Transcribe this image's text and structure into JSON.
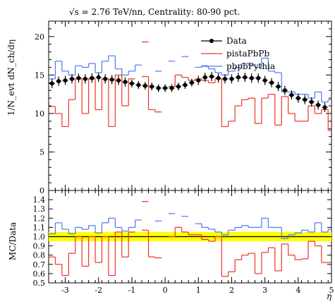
{
  "title": "√s = 2.76 TeV/nn, Centrality: 80-90 pct.",
  "colors": {
    "data": "#000000",
    "pista": "#ee3322",
    "pbpb": "#4d78ee",
    "band": "#ffff00"
  },
  "chart_data": [
    {
      "type": "line",
      "xlabel": "η",
      "ylabel": "1/N_evt dN_ch/dη",
      "xlim": [
        -3.5,
        5.0
      ],
      "ylim": [
        0,
        22
      ],
      "yticks": [
        "0",
        "5",
        "10",
        "15",
        "20"
      ],
      "xticks": [
        "-3",
        "-2",
        "-1",
        "0",
        "1",
        "2",
        "3",
        "4",
        "5"
      ],
      "legend": [
        "Data",
        "pistaPbPb",
        "pbpbPythia"
      ],
      "legend_position": "top-right",
      "series": [
        {
          "name": "Data",
          "x": [
            -3.4,
            -3.2,
            -3.0,
            -2.8,
            -2.6,
            -2.4,
            -2.2,
            -2.0,
            -1.8,
            -1.6,
            -1.4,
            -1.2,
            -1.0,
            -0.8,
            -0.6,
            -0.4,
            -0.2,
            0.0,
            0.2,
            0.4,
            0.6,
            0.8,
            1.0,
            1.2,
            1.4,
            1.6,
            1.8,
            2.0,
            2.2,
            2.4,
            2.6,
            2.8,
            3.0,
            3.2,
            3.4,
            3.6,
            3.8,
            4.0,
            4.2,
            4.4,
            4.6,
            4.8
          ],
          "y": [
            13.9,
            14.2,
            14.3,
            14.5,
            14.6,
            14.5,
            14.6,
            14.7,
            14.5,
            14.4,
            14.3,
            14.1,
            13.9,
            13.7,
            13.6,
            13.5,
            13.3,
            13.3,
            13.3,
            13.5,
            13.7,
            14.0,
            14.3,
            14.7,
            14.8,
            14.6,
            14.5,
            14.5,
            14.7,
            14.7,
            14.6,
            14.6,
            14.3,
            14.0,
            13.5,
            13.0,
            12.4,
            12.0,
            11.8,
            11.5,
            11.1,
            10.8
          ],
          "err": [
            0.6,
            0.6,
            0.6,
            0.6,
            0.6,
            0.6,
            0.6,
            0.6,
            0.6,
            0.6,
            0.6,
            0.6,
            0.5,
            0.5,
            0.5,
            0.5,
            0.5,
            0.5,
            0.5,
            0.5,
            0.5,
            0.5,
            0.6,
            0.6,
            0.6,
            0.6,
            0.6,
            0.6,
            0.6,
            0.6,
            0.6,
            0.6,
            0.6,
            0.6,
            0.6,
            0.6,
            0.6,
            0.6,
            0.6,
            0.6,
            0.6,
            0.6
          ]
        },
        {
          "name": "pistaPbPb",
          "x": [
            -3.5,
            -3.3,
            -3.1,
            -2.9,
            -2.7,
            -2.5,
            -2.3,
            -2.1,
            -1.9,
            -1.7,
            -1.5,
            -1.3,
            -1.1,
            -0.9,
            -0.7,
            -0.5,
            -0.3,
            -0.1,
            0.1,
            0.3,
            0.5,
            0.7,
            0.9,
            1.1,
            1.3,
            1.5,
            1.7,
            1.9,
            2.1,
            2.3,
            2.5,
            2.7,
            2.9,
            3.1,
            3.3,
            3.5,
            3.7,
            3.9,
            4.1,
            4.3,
            4.5,
            4.7,
            4.9,
            5.0
          ],
          "y": [
            null,
            10.9,
            10.0,
            8.3,
            11.8,
            14.5,
            10.0,
            14.5,
            10.5,
            14.5,
            8.3,
            15.0,
            11.0,
            14.5,
            null,
            null,
            10.5,
            10.2,
            null,
            null,
            null,
            null,
            14.5,
            14.5,
            14.5,
            14.0,
            8.3,
            9.0,
            11.0,
            11.8,
            12.0,
            8.7,
            12.0,
            12.5,
            8.5,
            12.2,
            10.0,
            9.0,
            9.0,
            11.0,
            10.0,
            7.8,
            null,
            null
          ],
          "segments": [
            [
              -3.5,
              10.9,
              -3.3
            ],
            [
              -3.3,
              10.0,
              -3.1
            ],
            [
              -3.1,
              8.3,
              -2.9
            ],
            [
              -2.9,
              11.8,
              -2.7
            ],
            [
              -2.7,
              14.5,
              -2.5
            ],
            [
              -2.5,
              10.0,
              -2.3
            ],
            [
              -2.3,
              14.5,
              -2.1
            ],
            [
              -2.1,
              10.5,
              -1.9
            ],
            [
              -1.9,
              14.5,
              -1.7
            ],
            [
              -1.7,
              8.3,
              -1.5
            ],
            [
              -1.5,
              15.0,
              -1.3
            ],
            [
              -1.3,
              11.0,
              -1.1
            ],
            [
              -1.1,
              14.5,
              -0.9
            ],
            [
              -0.7,
              19.3,
              -0.5
            ],
            [
              -0.7,
              14.8,
              -0.5
            ],
            [
              -0.5,
              10.5,
              -0.3
            ],
            [
              -0.3,
              10.2,
              -0.1
            ],
            [
              0.1,
              13.5,
              0.3
            ],
            [
              0.3,
              15.0,
              0.5
            ],
            [
              0.5,
              14.7,
              0.7
            ],
            [
              0.7,
              14.3,
              0.9
            ],
            [
              0.9,
              14.5,
              1.1
            ],
            [
              1.1,
              14.3,
              1.3
            ],
            [
              1.3,
              14.0,
              1.5
            ],
            [
              1.5,
              14.5,
              1.7
            ],
            [
              1.7,
              8.3,
              1.9
            ],
            [
              1.9,
              9.0,
              2.1
            ],
            [
              2.1,
              11.0,
              2.3
            ],
            [
              2.3,
              11.8,
              2.5
            ],
            [
              2.5,
              12.0,
              2.7
            ],
            [
              2.7,
              8.7,
              2.9
            ],
            [
              2.9,
              12.0,
              3.1
            ],
            [
              3.1,
              12.5,
              3.3
            ],
            [
              3.3,
              8.5,
              3.5
            ],
            [
              3.5,
              12.2,
              3.7
            ],
            [
              3.7,
              10.0,
              3.9
            ],
            [
              3.9,
              9.0,
              4.1
            ],
            [
              4.1,
              9.0,
              4.3
            ],
            [
              4.3,
              11.0,
              4.5
            ],
            [
              4.5,
              10.0,
              4.7
            ],
            [
              4.7,
              10.5,
              4.9
            ],
            [
              4.9,
              7.8,
              5.0
            ]
          ],
          "vertical_steps": true
        },
        {
          "name": "pbpbPythia",
          "segments": [
            [
              -3.5,
              14.5,
              -3.3
            ],
            [
              -3.3,
              16.8,
              -3.1
            ],
            [
              -3.1,
              15.5,
              -2.9
            ],
            [
              -2.9,
              15.0,
              -2.7
            ],
            [
              -2.7,
              16.2,
              -2.5
            ],
            [
              -2.5,
              16.0,
              -2.3
            ],
            [
              -2.3,
              16.5,
              -2.1
            ],
            [
              -2.1,
              15.3,
              -1.9
            ],
            [
              -1.9,
              16.8,
              -1.7
            ],
            [
              -1.7,
              17.5,
              -1.5
            ],
            [
              -1.5,
              15.8,
              -1.3
            ],
            [
              -1.3,
              15.0,
              -1.1
            ],
            [
              -1.1,
              15.5,
              -0.9
            ],
            [
              -0.9,
              16.3,
              -0.7
            ],
            [
              -0.3,
              15.5,
              -0.1
            ],
            [
              0.1,
              16.8,
              0.3
            ],
            [
              0.5,
              17.4,
              0.7
            ],
            [
              0.9,
              16.0,
              1.1
            ],
            [
              1.1,
              16.2,
              1.3
            ],
            [
              1.3,
              15.8,
              1.5
            ],
            [
              1.5,
              15.3,
              1.7
            ],
            [
              1.7,
              15.0,
              1.9
            ],
            [
              1.9,
              15.5,
              2.1
            ],
            [
              2.1,
              16.0,
              2.3
            ],
            [
              2.3,
              16.5,
              2.5
            ],
            [
              2.5,
              16.3,
              2.7
            ],
            [
              2.7,
              16.0,
              2.9
            ],
            [
              2.9,
              17.2,
              3.1
            ],
            [
              3.1,
              15.5,
              3.3
            ],
            [
              3.3,
              15.3,
              3.5
            ],
            [
              3.5,
              12.8,
              3.7
            ],
            [
              3.7,
              12.8,
              3.9
            ],
            [
              3.9,
              12.5,
              4.1
            ],
            [
              4.1,
              12.5,
              4.3
            ],
            [
              4.3,
              12.0,
              4.5
            ],
            [
              4.5,
              12.8,
              4.7
            ],
            [
              4.7,
              11.5,
              4.9
            ],
            [
              4.9,
              11.8,
              5.0
            ]
          ],
          "vertical_steps": true
        }
      ]
    },
    {
      "type": "line",
      "ylabel": "MC/Data",
      "xlabel": "η",
      "xlim": [
        -3.5,
        5.0
      ],
      "ylim": [
        0.5,
        1.5
      ],
      "yticks": [
        "0.5",
        "0.6",
        "0.7",
        "0.8",
        "0.9",
        "1.0",
        "1.1",
        "1.2",
        "1.3",
        "1.4"
      ],
      "xticks": [
        "-3",
        "-2",
        "-1",
        "0",
        "1",
        "2",
        "3",
        "4",
        "5"
      ],
      "band": {
        "center": 1.0,
        "halfwidth": 0.05
      },
      "series": [
        {
          "name": "pistaPbPb",
          "segments": [
            [
              -3.5,
              0.78,
              -3.3
            ],
            [
              -3.3,
              0.7,
              -3.1
            ],
            [
              -3.1,
              0.58,
              -2.9
            ],
            [
              -2.9,
              0.82,
              -2.7
            ],
            [
              -2.7,
              1.0,
              -2.5
            ],
            [
              -2.5,
              0.68,
              -2.3
            ],
            [
              -2.3,
              1.0,
              -2.1
            ],
            [
              -2.1,
              0.72,
              -1.9
            ],
            [
              -1.9,
              1.0,
              -1.7
            ],
            [
              -1.7,
              0.58,
              -1.5
            ],
            [
              -1.5,
              1.05,
              -1.3
            ],
            [
              -1.3,
              0.78,
              -1.1
            ],
            [
              -1.1,
              1.05,
              -0.9
            ],
            [
              -0.7,
              1.38,
              -0.5
            ],
            [
              -0.7,
              1.07,
              -0.5
            ],
            [
              -0.5,
              0.78,
              -0.3
            ],
            [
              -0.3,
              0.77,
              -0.1
            ],
            [
              0.1,
              1.0,
              0.3
            ],
            [
              0.3,
              1.1,
              0.5
            ],
            [
              0.5,
              1.05,
              0.7
            ],
            [
              0.7,
              1.02,
              0.9
            ],
            [
              0.9,
              1.02,
              1.1
            ],
            [
              1.1,
              0.97,
              1.3
            ],
            [
              1.3,
              0.95,
              1.5
            ],
            [
              1.5,
              1.0,
              1.7
            ],
            [
              1.7,
              0.57,
              1.9
            ],
            [
              1.9,
              0.62,
              2.1
            ],
            [
              2.1,
              0.75,
              2.3
            ],
            [
              2.3,
              0.8,
              2.5
            ],
            [
              2.5,
              0.82,
              2.7
            ],
            [
              2.7,
              0.6,
              2.9
            ],
            [
              2.9,
              0.83,
              3.1
            ],
            [
              3.1,
              0.88,
              3.3
            ],
            [
              3.3,
              0.63,
              3.5
            ],
            [
              3.5,
              0.92,
              3.7
            ],
            [
              3.7,
              0.8,
              3.9
            ],
            [
              3.9,
              0.75,
              4.1
            ],
            [
              4.1,
              0.76,
              4.3
            ],
            [
              4.3,
              0.95,
              4.5
            ],
            [
              4.5,
              0.9,
              4.7
            ],
            [
              4.7,
              0.72,
              4.9
            ],
            [
              4.9,
              0.72,
              5.0
            ]
          ],
          "vertical_steps": true
        },
        {
          "name": "pbpbPythia",
          "segments": [
            [
              -3.5,
              1.03,
              -3.3
            ],
            [
              -3.3,
              1.15,
              -3.1
            ],
            [
              -3.1,
              1.08,
              -2.9
            ],
            [
              -2.9,
              1.03,
              -2.7
            ],
            [
              -2.7,
              1.1,
              -2.5
            ],
            [
              -2.5,
              1.08,
              -2.3
            ],
            [
              -2.3,
              1.12,
              -2.1
            ],
            [
              -2.1,
              1.04,
              -1.9
            ],
            [
              -1.9,
              1.15,
              -1.7
            ],
            [
              -1.7,
              1.2,
              -1.5
            ],
            [
              -1.5,
              1.1,
              -1.3
            ],
            [
              -1.3,
              1.06,
              -1.1
            ],
            [
              -1.1,
              1.1,
              -0.9
            ],
            [
              -0.9,
              1.18,
              -0.7
            ],
            [
              -0.3,
              1.17,
              -0.1
            ],
            [
              0.1,
              1.25,
              0.3
            ],
            [
              0.5,
              1.22,
              0.7
            ],
            [
              0.9,
              1.14,
              1.1
            ],
            [
              1.1,
              1.1,
              1.3
            ],
            [
              1.3,
              1.08,
              1.5
            ],
            [
              1.5,
              1.05,
              1.7
            ],
            [
              1.7,
              1.02,
              1.9
            ],
            [
              1.9,
              1.07,
              2.1
            ],
            [
              2.1,
              1.1,
              2.3
            ],
            [
              2.3,
              1.12,
              2.5
            ],
            [
              2.5,
              1.1,
              2.7
            ],
            [
              2.7,
              1.1,
              2.9
            ],
            [
              2.9,
              1.2,
              3.1
            ],
            [
              3.1,
              1.1,
              3.3
            ],
            [
              3.3,
              1.1,
              3.5
            ],
            [
              3.5,
              0.98,
              3.7
            ],
            [
              3.7,
              1.02,
              3.9
            ],
            [
              3.9,
              1.04,
              4.1
            ],
            [
              4.1,
              1.07,
              4.3
            ],
            [
              4.3,
              1.05,
              4.5
            ],
            [
              4.5,
              1.15,
              4.7
            ],
            [
              4.7,
              1.05,
              4.9
            ],
            [
              4.9,
              1.08,
              5.0
            ]
          ],
          "vertical_steps": true
        }
      ]
    }
  ]
}
